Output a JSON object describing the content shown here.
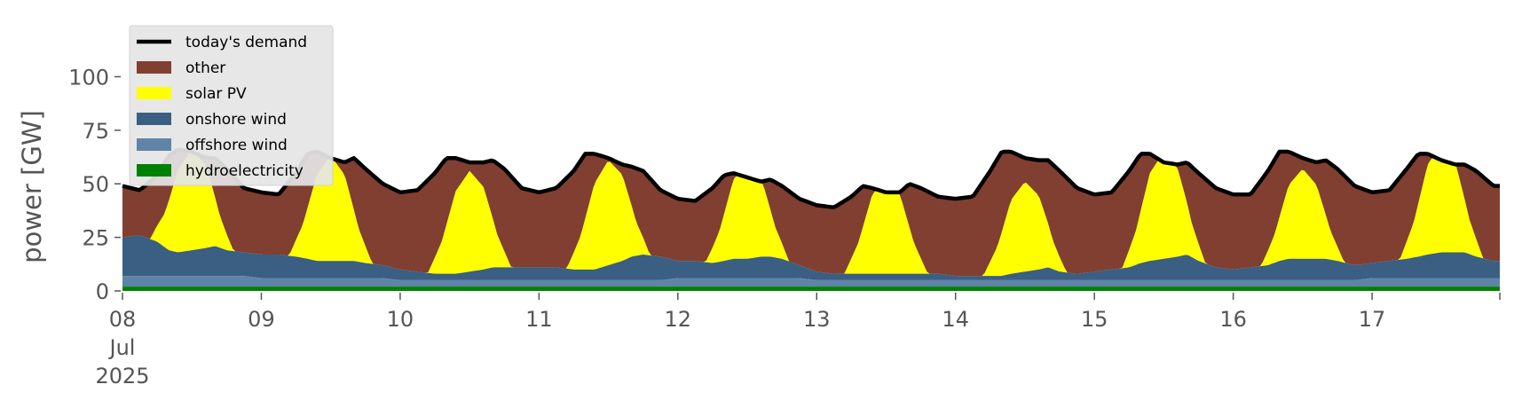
{
  "chart_data": {
    "type": "area",
    "title": "",
    "xlabel": "",
    "ylabel": "power [GW]",
    "xlim": [
      0,
      9.92
    ],
    "ylim": [
      0,
      118
    ],
    "legend_position": "top-left",
    "x_ticks": [
      {
        "x": 0,
        "lines": [
          "08",
          "Jul",
          "2025"
        ]
      },
      {
        "x": 1,
        "lines": [
          "09"
        ]
      },
      {
        "x": 2,
        "lines": [
          "10"
        ]
      },
      {
        "x": 3,
        "lines": [
          "11"
        ]
      },
      {
        "x": 4,
        "lines": [
          "12"
        ]
      },
      {
        "x": 5,
        "lines": [
          "13"
        ]
      },
      {
        "x": 6,
        "lines": [
          "14"
        ]
      },
      {
        "x": 7,
        "lines": [
          "15"
        ]
      },
      {
        "x": 8,
        "lines": [
          "16"
        ]
      },
      {
        "x": 9,
        "lines": [
          "17"
        ]
      }
    ],
    "y_ticks": [
      0,
      25,
      50,
      75,
      100
    ],
    "x_day_offsets": [
      0,
      0.125,
      0.25,
      0.333,
      0.4,
      0.5,
      0.6,
      0.667,
      0.75,
      0.875
    ],
    "days": [
      {
        "hydro": 2,
        "offshore": 5,
        "onshore": [
          18,
          19,
          16,
          12,
          11,
          12,
          13,
          14,
          12,
          11
        ],
        "solar_peak": 47,
        "demand": [
          49,
          47,
          54,
          63,
          66,
          65,
          62,
          62,
          57,
          48
        ]
      },
      {
        "hydro": 2,
        "offshore": 4,
        "onshore": [
          11,
          11,
          10,
          9,
          8,
          8,
          8,
          8,
          7,
          6
        ],
        "solar_peak": 49,
        "demand": [
          46,
          45,
          55,
          64,
          65,
          62,
          60,
          62,
          57,
          50
        ]
      },
      {
        "hydro": 2,
        "offshore": 3,
        "onshore": [
          5,
          4,
          3,
          3,
          3,
          4,
          5,
          6,
          6,
          6
        ],
        "solar_peak": 47,
        "demand": [
          46,
          47,
          55,
          62,
          62,
          60,
          60,
          61,
          57,
          48
        ]
      },
      {
        "hydro": 2,
        "offshore": 3,
        "onshore": [
          6,
          6,
          5,
          5,
          5,
          7,
          9,
          11,
          12,
          11
        ],
        "solar_peak": 49,
        "demand": [
          46,
          48,
          56,
          64,
          64,
          62,
          59,
          58,
          56,
          47
        ]
      },
      {
        "hydro": 2,
        "offshore": 4,
        "onshore": [
          8,
          8,
          7,
          8,
          9,
          9,
          10,
          10,
          9,
          6
        ],
        "solar_peak": 45,
        "demand": [
          43,
          42,
          48,
          54,
          55,
          53,
          51,
          52,
          49,
          43
        ]
      },
      {
        "hydro": 2,
        "offshore": 3,
        "onshore": [
          4,
          3,
          3,
          3,
          3,
          3,
          3,
          3,
          3,
          3
        ],
        "solar_peak": 45,
        "demand": [
          40,
          39,
          44,
          49,
          48,
          46,
          46,
          50,
          48,
          44
        ]
      },
      {
        "hydro": 2,
        "offshore": 3,
        "onshore": [
          2,
          2,
          2,
          2,
          3,
          4,
          5,
          6,
          4,
          3
        ],
        "solar_peak": 42,
        "demand": [
          43,
          44,
          56,
          65,
          65,
          62,
          61,
          61,
          56,
          48
        ]
      },
      {
        "hydro": 2,
        "offshore": 3,
        "onshore": [
          4,
          5,
          6,
          8,
          9,
          10,
          11,
          12,
          9,
          6
        ],
        "solar_peak": 50,
        "demand": [
          45,
          46,
          56,
          64,
          64,
          60,
          59,
          60,
          55,
          48
        ]
      },
      {
        "hydro": 2,
        "offshore": 3,
        "onshore": [
          5,
          6,
          7,
          9,
          10,
          10,
          10,
          10,
          9,
          7
        ],
        "solar_peak": 42,
        "demand": [
          45,
          45,
          56,
          65,
          65,
          62,
          60,
          61,
          57,
          49
        ]
      },
      {
        "hydro": 2,
        "offshore": 4,
        "onshore": [
          7,
          8,
          9,
          10,
          11,
          12,
          12,
          12,
          10,
          8
        ],
        "solar_peak": 51,
        "demand": [
          46,
          47,
          57,
          64,
          64,
          61,
          59,
          59,
          56,
          49
        ]
      }
    ],
    "solar_profile": {
      "x": [
        0.2,
        0.3,
        0.4,
        0.5,
        0.6,
        0.7,
        0.8
      ],
      "fraction": [
        0,
        0.32,
        0.82,
        1,
        0.82,
        0.32,
        0
      ]
    },
    "series": [
      {
        "name": "hydroelectricity",
        "color": "#008000",
        "kind": "area"
      },
      {
        "name": "offshore wind",
        "color": "#5f84a7",
        "kind": "area"
      },
      {
        "name": "onshore wind",
        "color": "#3a5f82",
        "kind": "area"
      },
      {
        "name": "solar PV",
        "color": "#ffff00",
        "kind": "area"
      },
      {
        "name": "other",
        "color": "#813f31",
        "kind": "area"
      },
      {
        "name": "today's demand",
        "color": "#000000",
        "kind": "line"
      }
    ],
    "legend_order": [
      "today's demand",
      "other",
      "solar PV",
      "onshore wind",
      "offshore wind",
      "hydroelectricity"
    ],
    "colors": {
      "plot_background": "#ffffff",
      "legend_background": "#e5e5e5",
      "tick_text": "#555555"
    }
  }
}
